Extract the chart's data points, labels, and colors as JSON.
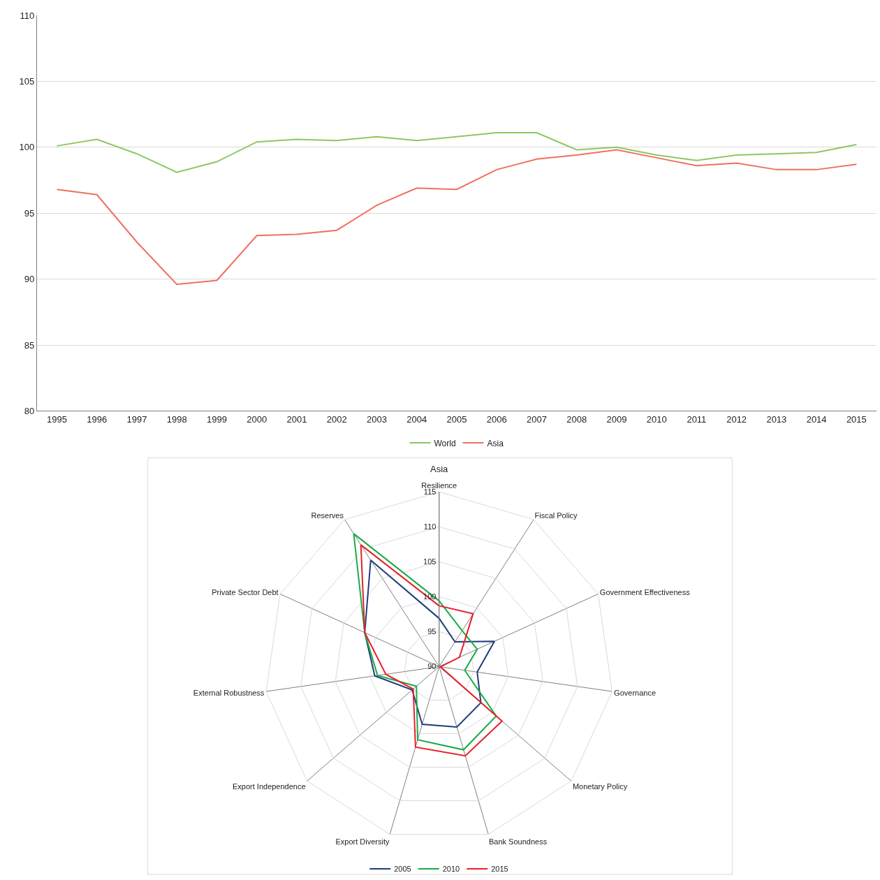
{
  "chart_data": [
    {
      "type": "line",
      "categories": [
        "1995",
        "1996",
        "1997",
        "1998",
        "1999",
        "2000",
        "2001",
        "2002",
        "2003",
        "2004",
        "2005",
        "2006",
        "2007",
        "2008",
        "2009",
        "2010",
        "2011",
        "2012",
        "2013",
        "2014",
        "2015"
      ],
      "series": [
        {
          "name": "World",
          "color": "#8cc862",
          "values": [
            100.1,
            100.6,
            99.5,
            98.1,
            98.9,
            100.4,
            100.6,
            100.5,
            100.8,
            100.5,
            100.8,
            101.1,
            101.1,
            99.8,
            100.0,
            99.4,
            99.0,
            99.4,
            99.5,
            99.6,
            100.2
          ]
        },
        {
          "name": "Asia",
          "color": "#f07060",
          "values": [
            96.8,
            96.4,
            92.8,
            89.6,
            89.9,
            93.3,
            93.4,
            93.7,
            95.6,
            96.9,
            96.8,
            98.3,
            99.1,
            99.4,
            99.8,
            99.2,
            98.6,
            98.8,
            98.3,
            98.3,
            98.7
          ]
        }
      ],
      "ylim": [
        80,
        110
      ],
      "yticks": [
        80,
        85,
        90,
        95,
        100,
        105,
        110
      ],
      "grid": "y",
      "legend": "bottom",
      "marker": "none",
      "line_style": "solid"
    },
    {
      "type": "radar",
      "title": "Asia",
      "categories": [
        "Resilience",
        "Fiscal Policy",
        "Government Effectiveness",
        "Governance",
        "Monetary Policy",
        "Bank Soundness",
        "Export Diversity",
        "Export Independence",
        "External Robustness",
        "Private Sector Debt",
        "Reserves"
      ],
      "series": [
        {
          "name": "2005",
          "color": "#1f3d7a",
          "values": [
            96.9,
            94.2,
            98.7,
            95.5,
            97.9,
            99.0,
            98.6,
            95.1,
            99.3,
            101.7,
            108.1
          ]
        },
        {
          "name": "2010",
          "color": "#1aaa4a",
          "values": [
            99.4,
            96.1,
            96.0,
            93.7,
            100.8,
            102.4,
            100.9,
            94.3,
            98.9,
            101.7,
            112.6
          ]
        },
        {
          "name": "2015",
          "color": "#e8202a",
          "values": [
            98.7,
            99.0,
            93.2,
            90.2,
            101.9,
            103.3,
            102.0,
            94.9,
            97.7,
            101.7,
            110.7
          ]
        }
      ],
      "ylim": [
        90,
        115
      ],
      "yticks": [
        90,
        95,
        100,
        105,
        110,
        115
      ],
      "grid": true,
      "legend": "bottom",
      "marker": "none",
      "line_style": "solid"
    }
  ]
}
